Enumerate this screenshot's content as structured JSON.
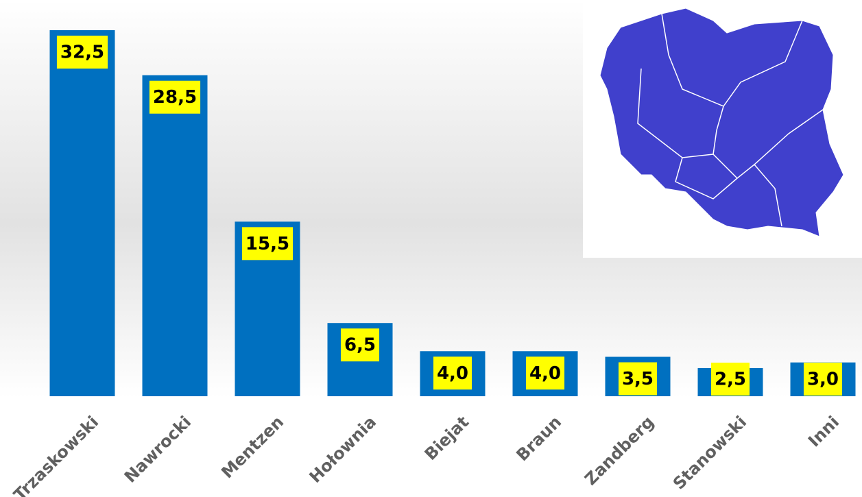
{
  "chart_data": {
    "type": "bar",
    "categories": [
      "Trzaskowski",
      "Nawrocki",
      "Mentzen",
      "Hołownia",
      "Biejat",
      "Braun",
      "Zandberg",
      "Stanowski",
      "Inni"
    ],
    "values": [
      32.5,
      28.5,
      15.5,
      6.5,
      4.0,
      4.0,
      3.5,
      2.5,
      3.0
    ],
    "value_labels": [
      "32,5",
      "28,5",
      "15,5",
      "6,5",
      "4,0",
      "4,0",
      "3,5",
      "2,5",
      "3,0"
    ],
    "color": "#0070c0",
    "label_color": "#ffff00"
  }
}
